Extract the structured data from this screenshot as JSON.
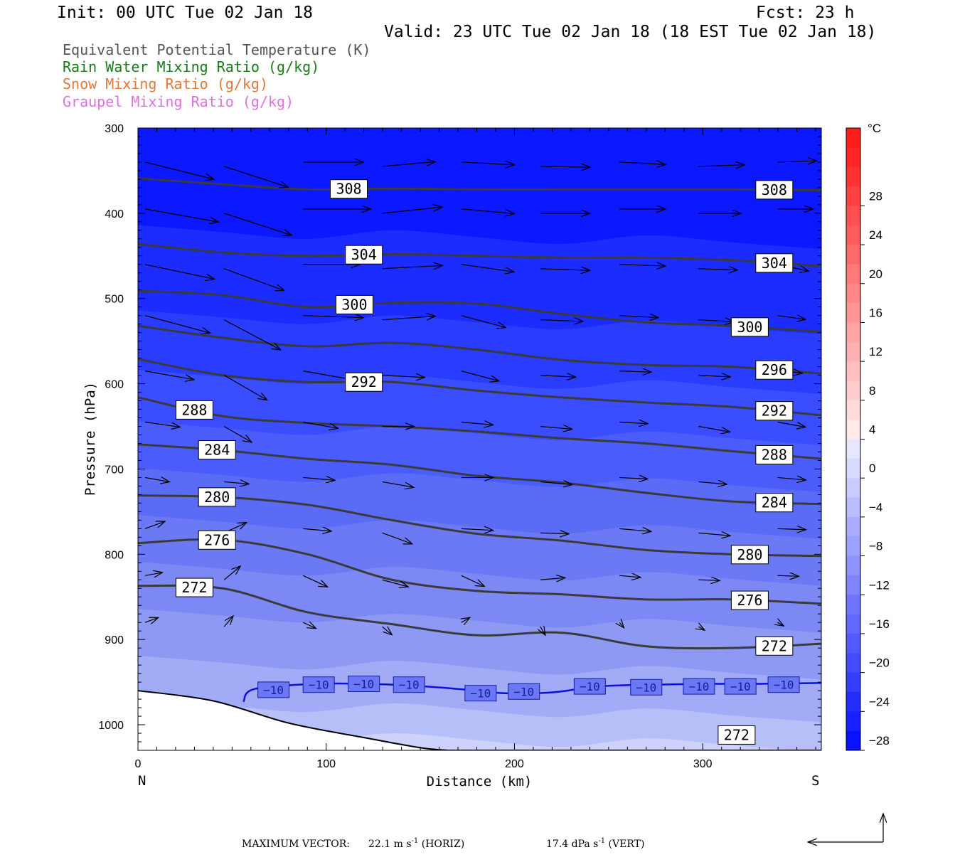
{
  "header": {
    "init": "Init: 00 UTC Tue 02 Jan 18",
    "fcst": "Fcst:   23 h",
    "valid": "Valid: 23 UTC Tue 02 Jan 18 (18 EST Tue 02 Jan 18)"
  },
  "legend": [
    {
      "text": "Equivalent Potential Temperature (K)",
      "color": "#555555"
    },
    {
      "text": "Rain Water Mixing Ratio (g/kg)",
      "color": "#1a7a1a"
    },
    {
      "text": "Snow Mixing Ratio (g/kg)",
      "color": "#e07a3a"
    },
    {
      "text": "Graupel Mixing Ratio (g/kg)",
      "color": "#e070e0"
    }
  ],
  "chart_data": {
    "type": "cross-section",
    "ylabel": "Pressure (hPa)",
    "xlabel": "Distance (km)",
    "x_range": [
      0,
      363
    ],
    "y_range_hpa": [
      300,
      1030
    ],
    "y_scale": "linear, inverted",
    "x_ticks": [
      0,
      100,
      200,
      300
    ],
    "y_ticks": [
      300,
      400,
      500,
      600,
      700,
      800,
      900,
      1000
    ],
    "left_end_label": "N",
    "right_end_label": "S",
    "fill_variable": "Temperature",
    "colorbar_unit": "°C",
    "colorbar_levels": [
      "28",
      "24",
      "20",
      "16",
      "12",
      "8",
      "4",
      "0",
      "−4",
      "−8",
      "−12",
      "−16",
      "−20",
      "−24",
      "−28"
    ],
    "theta_e_contours": [
      {
        "value": 308,
        "p": [
          359,
          366,
          372,
          371,
          372,
          372,
          372,
          372,
          373
        ],
        "labels": [
          "308",
          "308"
        ]
      },
      {
        "value": 304,
        "p": [
          436,
          446,
          450,
          448,
          450,
          452,
          452,
          455,
          462
        ],
        "labels": [
          "304",
          "304"
        ]
      },
      {
        "value": 300,
        "p": [
          491,
          496,
          510,
          505,
          506,
          518,
          528,
          532,
          539
        ],
        "labels": [
          "300",
          "300"
        ]
      },
      {
        "value": 296,
        "p": [
          532,
          546,
          556,
          552,
          560,
          572,
          578,
          580,
          588
        ],
        "labels": [
          "296"
        ]
      },
      {
        "value": 292,
        "p": [
          571,
          590,
          598,
          598,
          608,
          616,
          622,
          627,
          637
        ],
        "labels": [
          "292",
          "292"
        ]
      },
      {
        "value": 288,
        "p": [
          616,
          638,
          646,
          650,
          656,
          664,
          670,
          679,
          688
        ],
        "labels": [
          "288",
          "288"
        ]
      },
      {
        "value": 284,
        "p": [
          671,
          678,
          688,
          695,
          708,
          716,
          728,
          738,
          741
        ],
        "labels": [
          "284",
          "284"
        ]
      },
      {
        "value": 280,
        "p": [
          731,
          733,
          742,
          760,
          776,
          784,
          795,
          800,
          802
        ],
        "labels": [
          "280",
          "280"
        ]
      },
      {
        "value": 276,
        "p": [
          787,
          783,
          800,
          830,
          843,
          847,
          853,
          853,
          858
        ],
        "labels": [
          "276",
          "276"
        ]
      },
      {
        "value": 272,
        "p": [
          837,
          840,
          868,
          882,
          895,
          892,
          908,
          910,
          905
        ],
        "labels": [
          "272",
          "272",
          "272"
        ]
      }
    ],
    "contour_x_km": [
      0,
      45,
      90,
      135,
      180,
      225,
      270,
      315,
      363
    ],
    "isotherm": {
      "value": -10,
      "label": "−10",
      "p_approx": 952
    },
    "vector_note": {
      "prefix": "MAXIMUM VECTOR:",
      "horiz": "22.1 m s",
      "horiz_exp": "-1",
      "horiz_tag": " (HORIZ)",
      "vert": "17.4 dPa s",
      "vert_exp": "-1",
      "vert_tag": " (VERT)"
    }
  },
  "colors": {
    "plot_bg": "#0c18ff",
    "contour": "#3a3a3a",
    "isotherm": "#0a10e0",
    "terrain": "#000000"
  }
}
